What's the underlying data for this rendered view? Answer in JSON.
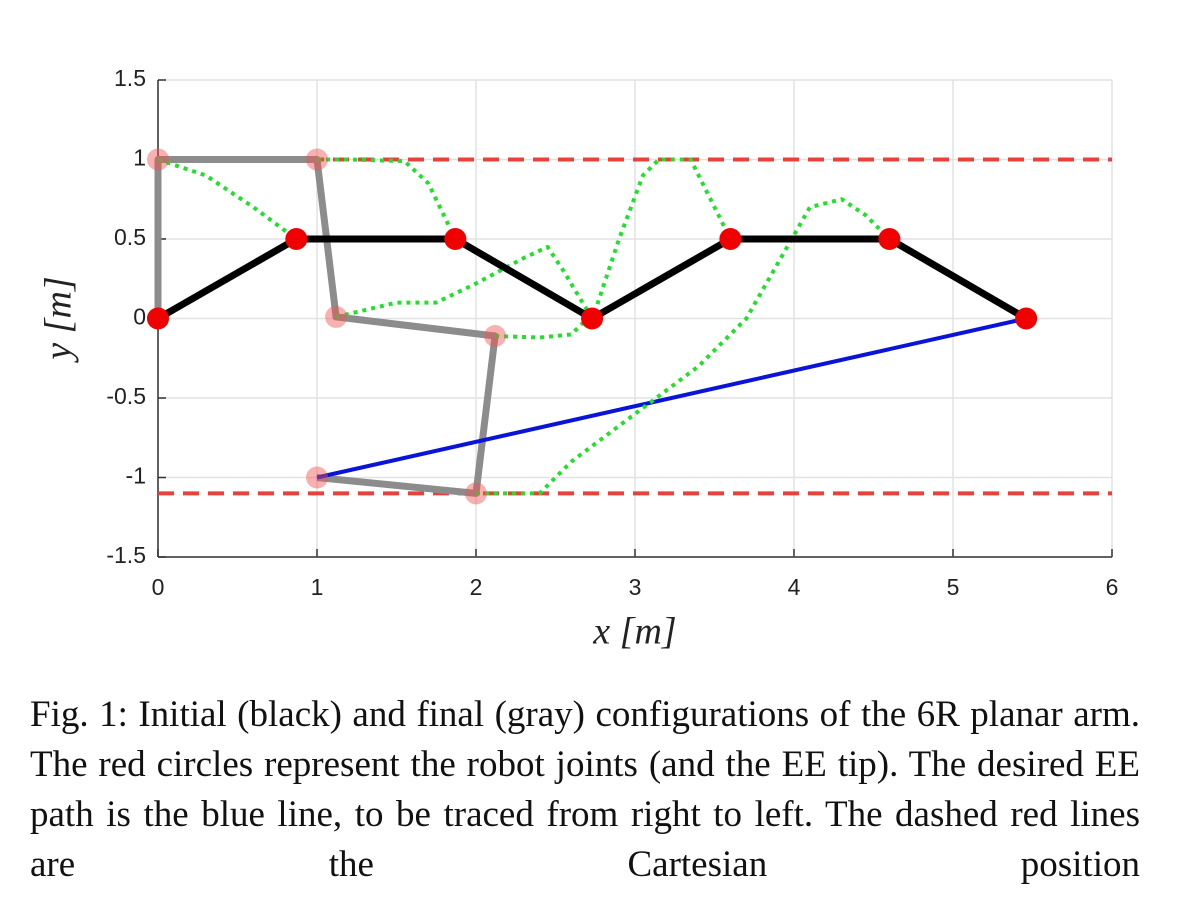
{
  "chart_data": {
    "type": "line",
    "xlabel": "x [m]",
    "ylabel": "y [m]",
    "xlim": [
      0,
      6
    ],
    "ylim": [
      -1.5,
      1.5
    ],
    "xticks": [
      0,
      1,
      2,
      3,
      4,
      5,
      6
    ],
    "yticks": [
      -1.5,
      -1,
      -0.5,
      0,
      0.5,
      1,
      1.5
    ],
    "grid": true,
    "series": [
      {
        "color": "#e8403a",
        "style": "dashed",
        "width": 4,
        "x": [
          0,
          6
        ],
        "values": [
          1,
          1
        ]
      },
      {
        "color": "#e8403a",
        "style": "dashed",
        "width": 4,
        "x": [
          0,
          6
        ],
        "values": [
          -1.1,
          -1.1
        ]
      },
      {
        "color": "#8c8c8c",
        "style": "solid",
        "width": 7,
        "marker_color": "rgba(240,80,80,0.45)",
        "x": [
          0,
          0,
          1,
          1.12,
          2.12,
          2.0,
          1.0
        ],
        "values": [
          0,
          1,
          1,
          0.01,
          -0.11,
          -1.1,
          -1.0
        ]
      },
      {
        "color": "#0a14d8",
        "style": "solid",
        "width": 4,
        "x": [
          5.46,
          1.0
        ],
        "values": [
          0,
          -1.0
        ]
      },
      {
        "color": "#22e02a",
        "style": "dotted",
        "width": 4,
        "x": [
          0,
          0.3,
          0.6,
          0.87
        ],
        "values": [
          1,
          0.9,
          0.7,
          0.5
        ]
      },
      {
        "color": "#22e02a",
        "style": "dotted",
        "width": 4,
        "x": [
          1.0,
          1.2,
          1.55,
          1.7,
          1.87
        ],
        "values": [
          1.0,
          1.0,
          0.99,
          0.85,
          0.5
        ]
      },
      {
        "color": "#22e02a",
        "style": "dotted",
        "width": 4,
        "x": [
          1.12,
          1.5,
          1.75,
          2.0,
          2.3,
          2.45,
          2.55,
          2.73
        ],
        "values": [
          0.01,
          0.1,
          0.1,
          0.22,
          0.38,
          0.45,
          0.3,
          0
        ]
      },
      {
        "color": "#22e02a",
        "style": "dotted",
        "width": 4,
        "x": [
          2.12,
          2.4,
          2.6,
          2.75,
          2.9,
          3.05,
          3.15,
          3.35,
          3.45,
          3.6
        ],
        "values": [
          -0.11,
          -0.12,
          -0.1,
          0.05,
          0.5,
          0.9,
          1.0,
          1.0,
          0.8,
          0.5
        ]
      },
      {
        "color": "#22e02a",
        "style": "dotted",
        "width": 4,
        "x": [
          2.0,
          2.4,
          2.6,
          3.0,
          3.4,
          3.7,
          3.9,
          4.1,
          4.3,
          4.45,
          4.6
        ],
        "values": [
          -1.1,
          -1.1,
          -0.9,
          -0.6,
          -0.3,
          0.0,
          0.35,
          0.7,
          0.75,
          0.65,
          0.5
        ]
      },
      {
        "color": "#000000",
        "style": "solid",
        "width": 7,
        "marker_color": "#f00000",
        "x": [
          0,
          0.87,
          1.87,
          2.73,
          3.6,
          4.6,
          5.46
        ],
        "values": [
          0,
          0.5,
          0.5,
          0,
          0.5,
          0.5,
          0
        ]
      }
    ]
  },
  "caption": "Fig. 1: Initial (black) and final (gray) configurations of the 6R planar arm. The red circles represent the robot joints (and the EE tip). The desired EE path is the blue line, to be traced from right to left. The dashed red lines are the Cartesian position"
}
